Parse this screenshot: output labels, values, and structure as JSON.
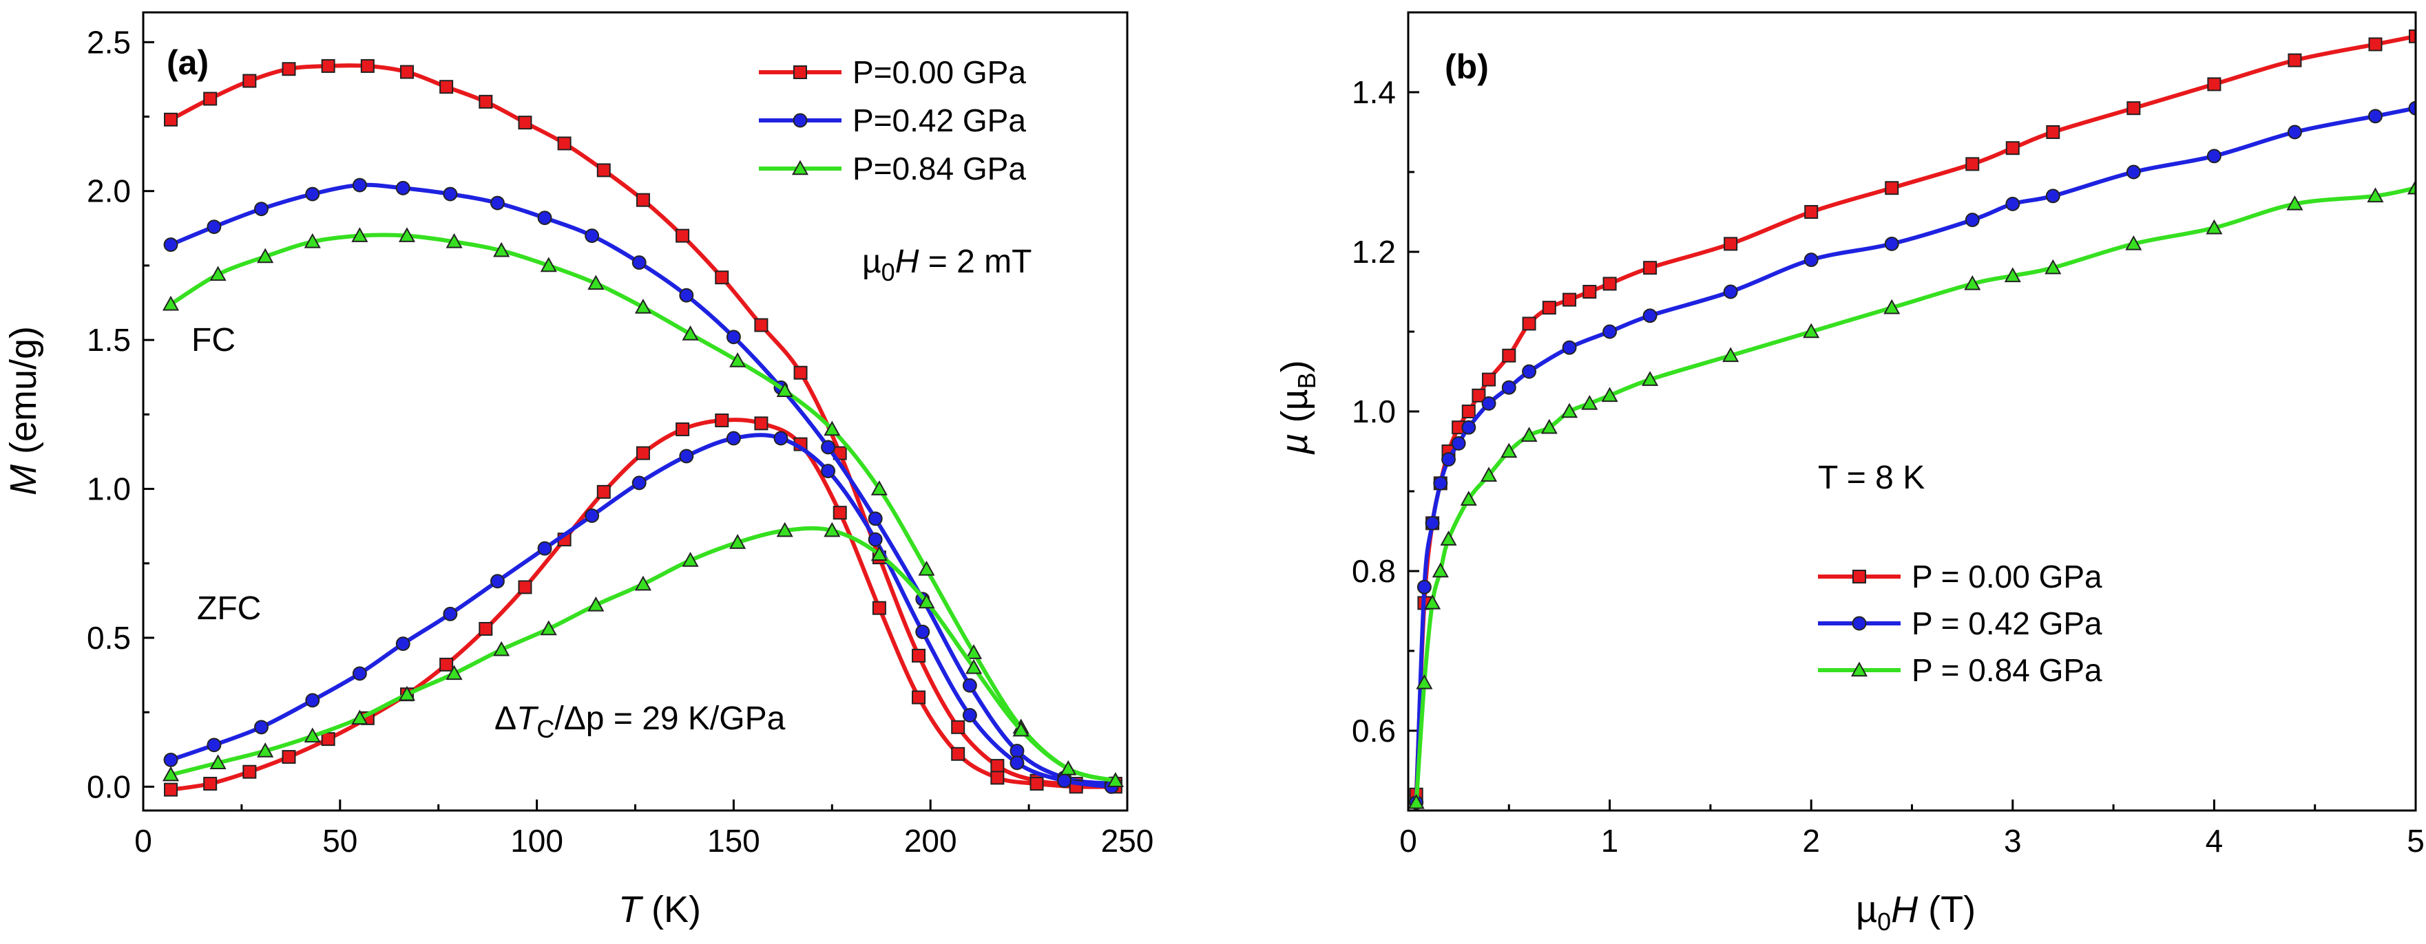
{
  "chart_data": [
    {
      "type": "line",
      "panel_label": "(a)",
      "xlabel": "T (K)",
      "xlabel_var": "T",
      "xlabel_unit": " (K)",
      "ylabel": "M (emu/g)",
      "ylabel_var": "M",
      "ylabel_unit": " (emu/g)",
      "xlim": [
        0,
        250
      ],
      "ylim": [
        -0.08,
        2.6
      ],
      "xticks": [
        0,
        50,
        100,
        150,
        200,
        250
      ],
      "xtick_labels": [
        "0",
        "50",
        "100",
        "150",
        "200",
        "250"
      ],
      "yticks": [
        0.0,
        0.5,
        1.0,
        1.5,
        2.0,
        2.5
      ],
      "ytick_labels": [
        "0.0",
        "0.5",
        "1.0",
        "1.5",
        "2.0",
        "2.5"
      ],
      "annotations": {
        "field": "µ0H = 2 mT",
        "field_mu": "µ",
        "field_sub": "0",
        "field_var": "H",
        "field_rest": " = 2 mT",
        "fc": "FC",
        "zfc": "ZFC",
        "dtc": "ΔTc/Δp = 29 K/GPa",
        "dtc_delta": "Δ",
        "dtc_var": "T",
        "dtc_sub": "C",
        "dtc_rest": "/Δp = 29 K/GPa"
      },
      "legend_position": "top-right",
      "series": [
        {
          "name": "P=0.00 GPa",
          "marker": "square",
          "color": "#e8191c",
          "branch": "FC",
          "x": [
            7,
            17,
            27,
            37,
            47,
            57,
            67,
            77,
            87,
            97,
            107,
            117,
            127,
            137,
            147,
            157,
            167,
            177,
            187,
            197,
            207,
            217,
            227,
            237,
            247
          ],
          "y": [
            2.24,
            2.31,
            2.37,
            2.41,
            2.42,
            2.42,
            2.4,
            2.35,
            2.3,
            2.23,
            2.16,
            2.07,
            1.97,
            1.85,
            1.71,
            1.55,
            1.39,
            1.12,
            0.77,
            0.44,
            0.2,
            0.07,
            0.02,
            0.01,
            0.01
          ]
        },
        {
          "name": "P=0.42 GPa",
          "marker": "circle",
          "color": "#1e22e0",
          "branch": "FC",
          "x": [
            7,
            18,
            30,
            43,
            55,
            66,
            78,
            90,
            102,
            114,
            126,
            138,
            150,
            162,
            174,
            186,
            198,
            210,
            222,
            234,
            246
          ],
          "y": [
            1.82,
            1.88,
            1.94,
            1.99,
            2.02,
            2.01,
            1.99,
            1.96,
            1.91,
            1.85,
            1.76,
            1.65,
            1.51,
            1.34,
            1.14,
            0.9,
            0.63,
            0.34,
            0.12,
            0.03,
            0.01
          ]
        },
        {
          "name": "P=0.84 GPa",
          "marker": "triangle",
          "color": "#36e020",
          "branch": "FC",
          "x": [
            7,
            19,
            31,
            43,
            55,
            67,
            79,
            91,
            103,
            115,
            127,
            139,
            151,
            163,
            175,
            187,
            199,
            211,
            223,
            235,
            247
          ],
          "y": [
            1.62,
            1.72,
            1.78,
            1.83,
            1.85,
            1.85,
            1.83,
            1.8,
            1.75,
            1.69,
            1.61,
            1.52,
            1.43,
            1.33,
            1.2,
            1.0,
            0.73,
            0.45,
            0.2,
            0.06,
            0.02
          ]
        },
        {
          "name": "P=0.00 GPa",
          "marker": "square",
          "color": "#e8191c",
          "branch": "ZFC",
          "x": [
            7,
            17,
            27,
            37,
            47,
            57,
            67,
            77,
            87,
            97,
            107,
            117,
            127,
            137,
            147,
            157,
            167,
            177,
            187,
            197,
            207,
            217,
            227,
            237,
            247
          ],
          "y": [
            -0.01,
            0.01,
            0.05,
            0.1,
            0.16,
            0.23,
            0.31,
            0.41,
            0.53,
            0.67,
            0.83,
            0.99,
            1.12,
            1.2,
            1.23,
            1.22,
            1.15,
            0.92,
            0.6,
            0.3,
            0.11,
            0.03,
            0.01,
            0.0,
            0.0
          ]
        },
        {
          "name": "P=0.42 GPa",
          "marker": "circle",
          "color": "#1e22e0",
          "branch": "ZFC",
          "x": [
            7,
            18,
            30,
            43,
            55,
            66,
            78,
            90,
            102,
            114,
            126,
            138,
            150,
            162,
            174,
            186,
            198,
            210,
            222,
            234,
            246
          ],
          "y": [
            0.09,
            0.14,
            0.2,
            0.29,
            0.38,
            0.48,
            0.58,
            0.69,
            0.8,
            0.91,
            1.02,
            1.11,
            1.17,
            1.17,
            1.06,
            0.83,
            0.52,
            0.24,
            0.08,
            0.02,
            0.0
          ]
        },
        {
          "name": "P=0.84 GPa",
          "marker": "triangle",
          "color": "#36e020",
          "branch": "ZFC",
          "x": [
            7,
            19,
            31,
            43,
            55,
            67,
            79,
            91,
            103,
            115,
            127,
            139,
            151,
            163,
            175,
            187,
            199,
            211,
            223,
            235,
            247
          ],
          "y": [
            0.04,
            0.08,
            0.12,
            0.17,
            0.23,
            0.31,
            0.38,
            0.46,
            0.53,
            0.61,
            0.68,
            0.76,
            0.82,
            0.86,
            0.86,
            0.78,
            0.62,
            0.4,
            0.19,
            0.06,
            0.02
          ]
        }
      ]
    },
    {
      "type": "line",
      "panel_label": "(b)",
      "xlabel": "µ0H (T)",
      "xlabel_mu": "µ",
      "xlabel_sub": "0",
      "xlabel_var": "H",
      "xlabel_unit": " (T)",
      "ylabel": "µ (µB)",
      "ylabel_var": "µ",
      "ylabel_mu": "µ",
      "ylabel_sub": "B",
      "xlim": [
        0,
        5
      ],
      "ylim": [
        0.5,
        1.5
      ],
      "xticks": [
        0,
        1,
        2,
        3,
        4,
        5
      ],
      "xtick_labels": [
        "0",
        "1",
        "2",
        "3",
        "4",
        "5"
      ],
      "yticks": [
        0.6,
        0.8,
        1.0,
        1.2,
        1.4
      ],
      "ytick_labels": [
        "0.6",
        "0.8",
        "1.0",
        "1.2",
        "1.4"
      ],
      "annotations": {
        "temperature": "T = 8 K"
      },
      "legend_position": "center-right",
      "series": [
        {
          "name": "P = 0.00 GPa",
          "marker": "square",
          "color": "#e8191c",
          "x": [
            0.04,
            0.08,
            0.12,
            0.16,
            0.2,
            0.25,
            0.3,
            0.35,
            0.4,
            0.5,
            0.6,
            0.7,
            0.8,
            0.9,
            1.0,
            1.2,
            1.6,
            2.0,
            2.4,
            2.8,
            3.0,
            3.2,
            3.6,
            4.0,
            4.4,
            4.8,
            5.0
          ],
          "y": [
            0.52,
            0.76,
            0.86,
            0.91,
            0.95,
            0.98,
            1.0,
            1.02,
            1.04,
            1.07,
            1.11,
            1.13,
            1.14,
            1.15,
            1.16,
            1.18,
            1.21,
            1.25,
            1.28,
            1.31,
            1.33,
            1.35,
            1.38,
            1.41,
            1.44,
            1.46,
            1.47
          ]
        },
        {
          "name": "P = 0.42 GPa",
          "marker": "circle",
          "color": "#1e22e0",
          "x": [
            0.04,
            0.08,
            0.12,
            0.16,
            0.2,
            0.25,
            0.3,
            0.4,
            0.5,
            0.6,
            0.8,
            1.0,
            1.2,
            1.6,
            2.0,
            2.4,
            2.8,
            3.0,
            3.2,
            3.6,
            4.0,
            4.4,
            4.8,
            5.0
          ],
          "y": [
            0.51,
            0.78,
            0.86,
            0.91,
            0.94,
            0.96,
            0.98,
            1.01,
            1.03,
            1.05,
            1.08,
            1.1,
            1.12,
            1.15,
            1.19,
            1.21,
            1.24,
            1.26,
            1.27,
            1.3,
            1.32,
            1.35,
            1.37,
            1.38
          ]
        },
        {
          "name": "P = 0.84 GPa",
          "marker": "triangle",
          "color": "#36e020",
          "x": [
            0.04,
            0.08,
            0.12,
            0.16,
            0.2,
            0.3,
            0.4,
            0.5,
            0.6,
            0.7,
            0.8,
            0.9,
            1.0,
            1.2,
            1.6,
            2.0,
            2.4,
            2.8,
            3.0,
            3.2,
            3.6,
            4.0,
            4.4,
            4.8,
            5.0
          ],
          "y": [
            0.51,
            0.66,
            0.76,
            0.8,
            0.84,
            0.89,
            0.92,
            0.95,
            0.97,
            0.98,
            1.0,
            1.01,
            1.02,
            1.04,
            1.07,
            1.1,
            1.13,
            1.16,
            1.17,
            1.18,
            1.21,
            1.23,
            1.26,
            1.27,
            1.28
          ]
        }
      ]
    }
  ]
}
